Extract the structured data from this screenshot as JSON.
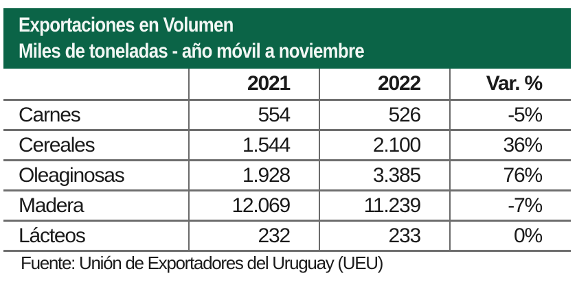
{
  "chart_data": {
    "type": "table",
    "title": "Exportaciones en Volumen",
    "subtitle": "Miles de toneladas - año móvil a noviembre",
    "columns": [
      "",
      "2021",
      "2022",
      "Var. %"
    ],
    "rows": [
      {
        "label": "Carnes",
        "values": [
          "554",
          "526",
          "-5%"
        ]
      },
      {
        "label": "Cereales",
        "values": [
          "1.544",
          "2.100",
          "36%"
        ]
      },
      {
        "label": "Oleaginosas",
        "values": [
          "1.928",
          "3.385",
          "76%"
        ]
      },
      {
        "label": "Madera",
        "values": [
          "12.069",
          "11.239",
          "-7%"
        ]
      },
      {
        "label": "Lácteos",
        "values": [
          "232",
          "233",
          "0%"
        ]
      }
    ],
    "source": "Fuente: Unión de Exportadores del Uruguay (UEU)",
    "colors": {
      "header_bg": "#0b6447",
      "header_text": "#f2f7f4",
      "rules": "#6e6e6e"
    }
  }
}
